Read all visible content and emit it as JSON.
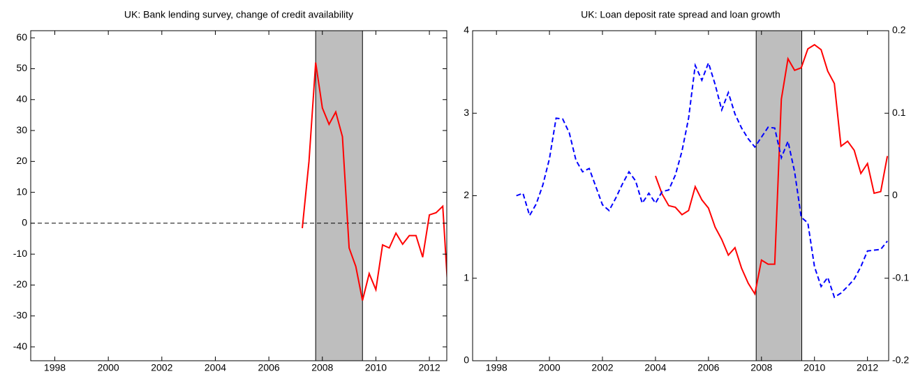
{
  "chart_data": [
    {
      "type": "line",
      "title": "UK: Bank lending survey, change of credit availability",
      "xlim": [
        1997.1,
        2012.65
      ],
      "xticks": [
        1998,
        2000,
        2002,
        2004,
        2006,
        2008,
        2010,
        2012
      ],
      "ylim": [
        -44.5,
        62.3
      ],
      "yticks": [
        -40,
        -30,
        -20,
        -10,
        0,
        10,
        20,
        30,
        40,
        50,
        60
      ],
      "shaded_region": [
        2007.75,
        2009.5
      ],
      "shade_color": "#bebebe",
      "reference_line": 0,
      "series": [
        {
          "color": "#ff0000",
          "style": "solid",
          "x": [
            2007.25,
            2007.5,
            2007.75,
            2008,
            2008.25,
            2008.5,
            2008.75,
            2009,
            2009.25,
            2009.5,
            2009.75,
            2010,
            2010.25,
            2010.5,
            2010.75,
            2011,
            2011.25,
            2011.5,
            2011.75,
            2012,
            2012.25,
            2012.5,
            2012.75
          ],
          "values": [
            -1.6,
            20,
            52,
            37.3,
            32,
            36,
            28,
            -8,
            -14,
            -25,
            -16.3,
            -21.5,
            -7,
            -8,
            -3.2,
            -6.8,
            -4,
            -4,
            -11,
            2.7,
            3.4,
            5.5,
            -30
          ]
        }
      ]
    },
    {
      "type": "line",
      "title": "UK: Loan deposit rate spread and loan growth",
      "xlim": [
        1997.1,
        2012.8
      ],
      "xticks": [
        1998,
        2000,
        2002,
        2004,
        2006,
        2008,
        2010,
        2012
      ],
      "ylim": [
        0,
        4
      ],
      "yticks": [
        0,
        1,
        2,
        3,
        4
      ],
      "y2lim": [
        -0.2,
        0.2
      ],
      "y2ticks": [
        -0.2,
        -0.1,
        0,
        0.1,
        0.2
      ],
      "shaded_region": [
        2007.8,
        2009.52
      ],
      "shade_color": "#bebebe",
      "series": [
        {
          "color": "#ff0000",
          "style": "solid",
          "x": [
            2004,
            2004.25,
            2004.5,
            2004.75,
            2005,
            2005.25,
            2005.5,
            2005.75,
            2006,
            2006.25,
            2006.5,
            2006.75,
            2007,
            2007.25,
            2007.5,
            2007.75,
            2008,
            2008.25,
            2008.5,
            2008.75,
            2009,
            2009.25,
            2009.5,
            2009.75,
            2010,
            2010.25,
            2010.5,
            2010.75,
            2011,
            2011.25,
            2011.5,
            2011.75,
            2012,
            2012.25,
            2012.5,
            2012.75
          ],
          "values": [
            2.24,
            2.02,
            1.88,
            1.86,
            1.77,
            1.82,
            2.11,
            1.95,
            1.85,
            1.62,
            1.47,
            1.28,
            1.37,
            1.12,
            0.94,
            0.81,
            1.22,
            1.17,
            1.17,
            3.17,
            3.66,
            3.52,
            3.55,
            3.78,
            3.83,
            3.77,
            3.51,
            3.36,
            2.6,
            2.66,
            2.55,
            2.27,
            2.39,
            2.03,
            2.05,
            2.48
          ]
        },
        {
          "color": "#0000ff",
          "style": "dashed",
          "axis": "y2",
          "x": [
            1998.75,
            1999,
            1999.25,
            1999.5,
            1999.75,
            2000,
            2000.25,
            2000.5,
            2000.75,
            2001,
            2001.25,
            2001.5,
            2001.75,
            2002,
            2002.25,
            2002.5,
            2002.75,
            2003,
            2003.25,
            2003.5,
            2003.75,
            2004,
            2004.25,
            2004.5,
            2004.75,
            2005,
            2005.25,
            2005.5,
            2005.75,
            2006,
            2006.25,
            2006.5,
            2006.75,
            2007,
            2007.25,
            2007.5,
            2007.75,
            2008,
            2008.25,
            2008.5,
            2008.75,
            2009,
            2009.25,
            2009.5,
            2009.75,
            2010,
            2010.25,
            2010.5,
            2010.75,
            2011,
            2011.25,
            2011.5,
            2011.75,
            2012,
            2012.25,
            2012.5,
            2012.75
          ],
          "values": [
            0,
            0.003,
            -0.024,
            -0.01,
            0.013,
            0.045,
            0.094,
            0.093,
            0.076,
            0.043,
            0.029,
            0.033,
            0.011,
            -0.011,
            -0.018,
            -0.003,
            0.014,
            0.029,
            0.018,
            -0.009,
            0.003,
            -0.009,
            0.005,
            0.007,
            0.025,
            0.054,
            0.094,
            0.158,
            0.14,
            0.161,
            0.135,
            0.104,
            0.125,
            0.099,
            0.082,
            0.069,
            0.059,
            0.071,
            0.083,
            0.082,
            0.046,
            0.066,
            0.029,
            -0.026,
            -0.033,
            -0.086,
            -0.11,
            -0.099,
            -0.123,
            -0.118,
            -0.11,
            -0.101,
            -0.086,
            -0.067,
            -0.066,
            -0.065,
            -0.055
          ]
        }
      ]
    }
  ]
}
